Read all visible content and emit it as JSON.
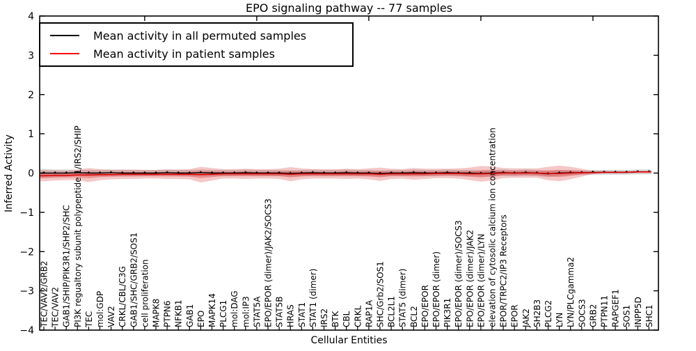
{
  "window": {
    "kind": "matplotlib-style figure",
    "background": "#ffffff"
  },
  "legend": {
    "entries": [
      {
        "label": "Mean activity in all permuted samples",
        "color": "#000000"
      },
      {
        "label": "Mean activity in patient samples",
        "color": "#ff0000"
      }
    ]
  },
  "colors": {
    "frame": "#000000",
    "permuted_line": "#000000",
    "patient_line": "#dd0000",
    "permuted_band": "#999999",
    "patient_band": "#dd4444"
  },
  "chart_data": {
    "type": "line",
    "title": "EPO signaling pathway -- 77 samples",
    "xlabel": "Cellular Entities",
    "ylabel": "Inferred Activity",
    "ylim": [
      -4,
      4
    ],
    "yticks": [
      4,
      3,
      2,
      1,
      0,
      -1,
      -2,
      -3,
      -4
    ],
    "grid": false,
    "legend_position": "upper left",
    "x_tick_label_rotation_deg": 90,
    "categories": [
      "TEC/VAV2/GRB2",
      "TEC/VAV2",
      "GAB1/SHIP/PIK3R1/SHP2/SHC",
      "PI3K regualtory subunit polypeptide 1/IRS2/SHIP",
      "TEC",
      "mol:GDP",
      "VAV2",
      "CRKL/CBL/C3G",
      "GAB1/SHC/GRB2/SOS1",
      "cell proliferation",
      "MAPK8",
      "PTPN6",
      "NFKB1",
      "GAB1",
      "EPO",
      "MAPK14",
      "PLCG1",
      "mol:DAG",
      "mol:IP3",
      "STAT5A",
      "EPO/EPOR (dimer)/JAK2/SOCS3",
      "STAT5B",
      "HRAS",
      "STAT1",
      "STAT1 (dimer)",
      "IRS2",
      "BTK",
      "CBL",
      "CRKL",
      "RAP1A",
      "SHC/Grb2/SOS1",
      "BCL2L1",
      "STAT5 (dimer)",
      "BCL2",
      "EPO/EPOR",
      "EPO/EPOR (dimer)",
      "PIK3R1",
      "EPO/EPOR (dimer)/SOCS3",
      "EPO/EPOR (dimer)/JAK2",
      "EPO/EPOR (dimer)/LYN",
      "elevation of cytosolic calcium ion concentration",
      "EPOR/TRPC2/IP3 Receptors",
      "EPOR",
      "JAK2",
      "SH2B3",
      "PLCG2",
      "LYN",
      "LYN/PLCgamma2",
      "SOCS3",
      "GRB2",
      "PTPN11",
      "RAPGEF1",
      "SOS1",
      "INPP5D",
      "SHC1"
    ],
    "series": [
      {
        "name": "Mean activity in all permuted samples",
        "color": "#000000",
        "values": [
          0.0,
          0.0,
          0.0,
          0.01,
          0.0,
          0.0,
          0.01,
          0.0,
          0.0,
          0.0,
          0.0,
          0.01,
          0.0,
          0.0,
          0.01,
          0.0,
          0.0,
          0.0,
          0.01,
          0.0,
          0.0,
          0.0,
          -0.01,
          0.0,
          0.01,
          0.0,
          0.0,
          0.01,
          0.0,
          0.0,
          -0.01,
          0.0,
          0.0,
          0.01,
          0.0,
          0.0,
          0.01,
          0.0,
          0.0,
          -0.01,
          0.0,
          0.01,
          0.0,
          0.01,
          0.0,
          -0.02,
          0.0,
          0.01,
          0.01,
          0.02,
          0.02,
          0.02,
          0.02,
          0.03,
          0.03
        ],
        "band_halfwidth": [
          0.1,
          0.09,
          0.09,
          0.08,
          0.08,
          0.08,
          0.08,
          0.08,
          0.08,
          0.08,
          0.08,
          0.08,
          0.08,
          0.08,
          0.08,
          0.08,
          0.08,
          0.08,
          0.08,
          0.08,
          0.08,
          0.08,
          0.08,
          0.08,
          0.08,
          0.08,
          0.08,
          0.08,
          0.08,
          0.08,
          0.08,
          0.08,
          0.08,
          0.08,
          0.08,
          0.08,
          0.08,
          0.08,
          0.08,
          0.08,
          0.08,
          0.08,
          0.08,
          0.08,
          0.08,
          0.08,
          0.07,
          0.06,
          0.06,
          0.06,
          0.06,
          0.06,
          0.06,
          0.06,
          0.06
        ]
      },
      {
        "name": "Mean activity in patient samples",
        "color": "#ff0000",
        "values": [
          -0.07,
          -0.06,
          -0.06,
          -0.05,
          -0.05,
          -0.04,
          -0.04,
          -0.03,
          -0.03,
          -0.03,
          -0.03,
          -0.03,
          -0.03,
          -0.03,
          -0.04,
          -0.03,
          -0.02,
          -0.02,
          -0.02,
          -0.02,
          -0.02,
          -0.02,
          -0.03,
          -0.02,
          -0.02,
          -0.02,
          -0.02,
          -0.02,
          -0.02,
          -0.02,
          -0.03,
          -0.02,
          -0.02,
          -0.02,
          -0.02,
          -0.01,
          -0.01,
          -0.01,
          -0.02,
          -0.02,
          -0.01,
          0.0,
          0.0,
          0.0,
          0.0,
          -0.01,
          -0.01,
          0.0,
          0.01,
          0.01,
          0.02,
          0.02,
          0.02,
          0.03,
          0.03
        ],
        "band_halfwidth": [
          0.14,
          0.13,
          0.12,
          0.13,
          0.18,
          0.14,
          0.12,
          0.12,
          0.12,
          0.11,
          0.11,
          0.12,
          0.12,
          0.13,
          0.2,
          0.16,
          0.12,
          0.12,
          0.13,
          0.12,
          0.12,
          0.13,
          0.18,
          0.14,
          0.12,
          0.12,
          0.12,
          0.13,
          0.12,
          0.14,
          0.17,
          0.13,
          0.12,
          0.15,
          0.13,
          0.12,
          0.12,
          0.13,
          0.16,
          0.2,
          0.18,
          0.13,
          0.12,
          0.12,
          0.12,
          0.17,
          0.2,
          0.16,
          0.1,
          0.04,
          0.03,
          0.03,
          0.03,
          0.03,
          0.03
        ]
      }
    ],
    "top_axis_major_tick_indices": [
      9,
      19,
      29,
      39,
      49
    ]
  }
}
